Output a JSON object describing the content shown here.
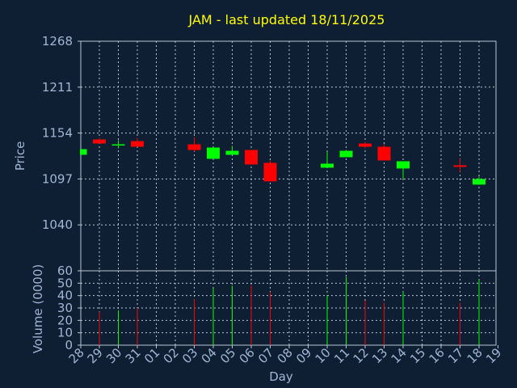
{
  "chart_data": {
    "type": "candlestick",
    "title": "JAM - last updated 18/11/2025",
    "xlabel": "Day",
    "price_panel": {
      "ylabel": "Price",
      "ylim": [
        983,
        1268
      ],
      "yticks": [
        "1268",
        "1211",
        "1154",
        "1097",
        "1040"
      ],
      "grid": true
    },
    "volume_panel": {
      "ylabel": "Volume (0000)",
      "ylim": [
        0,
        60
      ],
      "yticks": [
        "60",
        "50",
        "40",
        "30",
        "20",
        "10",
        "0"
      ],
      "grid": true
    },
    "x_ticks": [
      "28",
      "29",
      "30",
      "31",
      "01",
      "02",
      "03",
      "04",
      "05",
      "06",
      "07",
      "08",
      "09",
      "10",
      "11",
      "12",
      "13",
      "14",
      "15",
      "16",
      "17",
      "18",
      "19"
    ],
    "colors": {
      "background": "#0f1f33",
      "up": "#00ff00",
      "down": "#ff0000",
      "grid": "#b8c4d6",
      "axis_text": "#9fb6d4",
      "title": "#ffff00"
    },
    "candles": [
      {
        "day": "28",
        "open": 1127,
        "close": 1134,
        "high": 1134,
        "low": 1127,
        "volume": 0
      },
      {
        "day": "29",
        "open": 1146,
        "close": 1141,
        "high": 1148,
        "low": 1141,
        "volume": 27
      },
      {
        "day": "30",
        "open": 1139,
        "close": 1140,
        "high": 1145,
        "low": 1135,
        "volume": 28
      },
      {
        "day": "31",
        "open": 1144,
        "close": 1137,
        "high": 1148,
        "low": 1137,
        "volume": 30
      },
      {
        "day": "03",
        "open": 1140,
        "close": 1133,
        "high": 1149,
        "low": 1131,
        "volume": 37
      },
      {
        "day": "04",
        "open": 1122,
        "close": 1136,
        "high": 1136,
        "low": 1122,
        "volume": 46
      },
      {
        "day": "05",
        "open": 1127,
        "close": 1132,
        "high": 1138,
        "low": 1127,
        "volume": 48
      },
      {
        "day": "06",
        "open": 1133,
        "close": 1115,
        "high": 1133,
        "low": 1115,
        "volume": 48
      },
      {
        "day": "07",
        "open": 1117,
        "close": 1094,
        "high": 1120,
        "low": 1094,
        "volume": 43
      },
      {
        "day": "10",
        "open": 1111,
        "close": 1116,
        "high": 1131,
        "low": 1111,
        "volume": 40
      },
      {
        "day": "11",
        "open": 1124,
        "close": 1132,
        "high": 1133,
        "low": 1124,
        "volume": 55
      },
      {
        "day": "12",
        "open": 1141,
        "close": 1137,
        "high": 1143,
        "low": 1135,
        "volume": 36
      },
      {
        "day": "13",
        "open": 1137,
        "close": 1120,
        "high": 1140,
        "low": 1120,
        "volume": 34
      },
      {
        "day": "14",
        "open": 1110,
        "close": 1119,
        "high": 1119,
        "low": 1097,
        "volume": 43
      },
      {
        "day": "17",
        "open": 1114,
        "close": 1112,
        "high": 1122,
        "low": 1106,
        "volume": 34
      },
      {
        "day": "18",
        "open": 1090,
        "close": 1097,
        "high": 1100,
        "low": 1090,
        "volume": 53
      }
    ]
  }
}
